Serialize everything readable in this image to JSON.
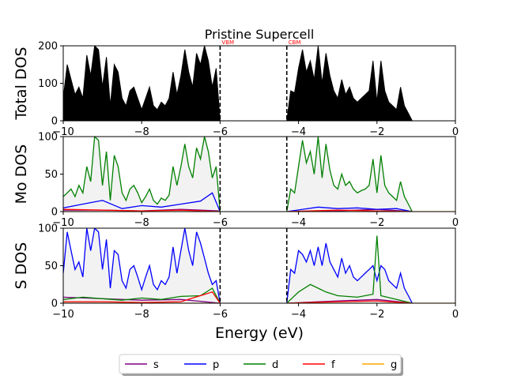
{
  "chart_data": {
    "type": "line",
    "title": "Pristine Supercell",
    "xlabel": "Energy (eV)",
    "xlim": [
      -10,
      0
    ],
    "x_ticks": [
      -10,
      -8,
      -6,
      -4,
      -2,
      0
    ],
    "x_tick_labels": [
      "−10",
      "−8",
      "−6",
      "−4",
      "−2",
      "0"
    ],
    "vlines": [
      {
        "x": -6.0,
        "label": "VBM",
        "color": "#ff0000"
      },
      {
        "x": -4.3,
        "label": "CBM",
        "color": "#ff0000"
      }
    ],
    "panels": [
      {
        "ylabel": "Total DOS",
        "ylim": [
          0,
          200
        ],
        "y_ticks": [
          0,
          100,
          200
        ],
        "y_tick_labels": [
          "0",
          "100",
          "200"
        ],
        "series": [
          {
            "name": "",
            "color": "#000000",
            "fill": true,
            "segments": [
              {
                "x": [
                  -10.0,
                  -9.9,
                  -9.8,
                  -9.7,
                  -9.6,
                  -9.5,
                  -9.4,
                  -9.3,
                  -9.2,
                  -9.1,
                  -9.0,
                  -8.9,
                  -8.8,
                  -8.7,
                  -8.6,
                  -8.5,
                  -8.4,
                  -8.3,
                  -8.2,
                  -8.1,
                  -8.0,
                  -7.9,
                  -7.8,
                  -7.7,
                  -7.6,
                  -7.5,
                  -7.4,
                  -7.3,
                  -7.2,
                  -7.1,
                  -7.0,
                  -6.9,
                  -6.8,
                  -6.7,
                  -6.6,
                  -6.5,
                  -6.4,
                  -6.3,
                  -6.2,
                  -6.1,
                  -6.0
                ],
                "y": [
                  60,
                  150,
                  110,
                  70,
                  90,
                  60,
                  175,
                  120,
                  200,
                  190,
                  90,
                  170,
                  40,
                  150,
                  130,
                  60,
                  40,
                  80,
                  90,
                  60,
                  30,
                  60,
                  90,
                  40,
                  30,
                  50,
                  40,
                  60,
                  130,
                  70,
                  120,
                  190,
                  130,
                  90,
                  180,
                  150,
                  200,
                  160,
                  90,
                  140,
                  0
                ]
              },
              {
                "x": [
                  -4.3,
                  -4.2,
                  -4.1,
                  -4.0,
                  -3.9,
                  -3.8,
                  -3.7,
                  -3.6,
                  -3.5,
                  -3.4,
                  -3.3,
                  -3.2,
                  -3.1,
                  -3.0,
                  -2.9,
                  -2.8,
                  -2.7,
                  -2.6,
                  -2.5,
                  -2.4,
                  -2.3,
                  -2.2,
                  -2.1,
                  -2.0,
                  -1.9,
                  -1.8,
                  -1.7,
                  -1.6,
                  -1.5,
                  -1.4,
                  -1.3,
                  -1.2,
                  -1.1
                ],
                "y": [
                  0,
                  80,
                  75,
                  140,
                  190,
                  130,
                  160,
                  110,
                  200,
                  100,
                  180,
                  120,
                  80,
                  60,
                  110,
                  70,
                  90,
                  60,
                  50,
                  60,
                  70,
                  80,
                  160,
                  50,
                  160,
                  80,
                  50,
                  40,
                  30,
                  90,
                  40,
                  20,
                  0
                ]
              }
            ]
          }
        ]
      },
      {
        "ylabel": "Mo DOS",
        "ylim": [
          0,
          100
        ],
        "y_ticks": [
          0,
          50,
          100
        ],
        "y_tick_labels": [
          "0",
          "50",
          "100"
        ],
        "series": [
          {
            "name": "s",
            "color": "#800080",
            "segments": [
              {
                "x": [
                  -10.0,
                  -9.0,
                  -8.0,
                  -7.0,
                  -6.0
                ],
                "y": [
                  2,
                  2,
                  1,
                  3,
                  1
                ]
              },
              {
                "x": [
                  -4.3,
                  -3.0,
                  -2.0,
                  -1.1
                ],
                "y": [
                  0,
                  1,
                  3,
                  0
                ]
              }
            ]
          },
          {
            "name": "p",
            "color": "#0000ff",
            "segments": [
              {
                "x": [
                  -10.0,
                  -9.5,
                  -9.0,
                  -8.5,
                  -8.0,
                  -7.5,
                  -7.0,
                  -6.5,
                  -6.2,
                  -6.0
                ],
                "y": [
                  5,
                  10,
                  15,
                  4,
                  8,
                  6,
                  10,
                  14,
                  25,
                  0
                ]
              },
              {
                "x": [
                  -4.3,
                  -3.5,
                  -3.0,
                  -2.5,
                  -2.0,
                  -1.5,
                  -1.1
                ],
                "y": [
                  0,
                  6,
                  4,
                  5,
                  3,
                  4,
                  0
                ]
              }
            ]
          },
          {
            "name": "d",
            "color": "#008000",
            "segments": [
              {
                "x": [
                  -10.0,
                  -9.9,
                  -9.8,
                  -9.7,
                  -9.6,
                  -9.5,
                  -9.4,
                  -9.3,
                  -9.2,
                  -9.1,
                  -9.0,
                  -8.9,
                  -8.8,
                  -8.7,
                  -8.6,
                  -8.5,
                  -8.4,
                  -8.3,
                  -8.2,
                  -8.1,
                  -8.0,
                  -7.9,
                  -7.8,
                  -7.7,
                  -7.6,
                  -7.5,
                  -7.4,
                  -7.3,
                  -7.2,
                  -7.1,
                  -7.0,
                  -6.9,
                  -6.8,
                  -6.7,
                  -6.6,
                  -6.5,
                  -6.4,
                  -6.3,
                  -6.2,
                  -6.1,
                  -6.0
                ],
                "y": [
                  20,
                  25,
                  30,
                  20,
                  35,
                  25,
                  60,
                  40,
                  100,
                  95,
                  35,
                  80,
                  15,
                  75,
                  60,
                  25,
                  15,
                  30,
                  35,
                  25,
                  12,
                  20,
                  30,
                  15,
                  10,
                  18,
                  15,
                  22,
                  60,
                  35,
                  60,
                  90,
                  60,
                  45,
                  85,
                  70,
                  100,
                  80,
                  45,
                  60,
                  0
                ]
              },
              {
                "x": [
                  -4.3,
                  -4.2,
                  -4.1,
                  -4.0,
                  -3.9,
                  -3.8,
                  -3.7,
                  -3.6,
                  -3.5,
                  -3.4,
                  -3.3,
                  -3.2,
                  -3.1,
                  -3.0,
                  -2.9,
                  -2.8,
                  -2.7,
                  -2.6,
                  -2.5,
                  -2.4,
                  -2.3,
                  -2.2,
                  -2.1,
                  -2.0,
                  -1.9,
                  -1.8,
                  -1.7,
                  -1.6,
                  -1.5,
                  -1.4,
                  -1.3,
                  -1.2,
                  -1.1
                ],
                "y": [
                  0,
                  30,
                  25,
                  60,
                  95,
                  65,
                  80,
                  50,
                  100,
                  45,
                  90,
                  55,
                  35,
                  30,
                  50,
                  35,
                  40,
                  30,
                  25,
                  28,
                  30,
                  35,
                  70,
                  25,
                  75,
                  35,
                  25,
                  20,
                  15,
                  40,
                  20,
                  10,
                  0
                ]
              }
            ]
          },
          {
            "name": "f",
            "color": "#ff0000",
            "segments": [
              {
                "x": [
                  -10.0,
                  -9.0,
                  -8.0,
                  -7.0,
                  -6.0
                ],
                "y": [
                  3,
                  2,
                  1,
                  2,
                  0
                ]
              },
              {
                "x": [
                  -4.3,
                  -3.0,
                  -2.0,
                  -1.1
                ],
                "y": [
                  0,
                  2,
                  1,
                  0
                ]
              }
            ]
          },
          {
            "name": "g",
            "color": "#ffa500",
            "segments": [
              {
                "x": [
                  -10.0,
                  -6.0
                ],
                "y": [
                  0,
                  0
                ]
              },
              {
                "x": [
                  -4.3,
                  0.0
                ],
                "y": [
                  0,
                  0
                ]
              }
            ]
          }
        ]
      },
      {
        "ylabel": "S DOS",
        "ylim": [
          0,
          100
        ],
        "y_ticks": [
          0,
          50,
          100
        ],
        "y_tick_labels": [
          "0",
          "50",
          "100"
        ],
        "series": [
          {
            "name": "s",
            "color": "#800080",
            "segments": [
              {
                "x": [
                  -10.0,
                  -9.0,
                  -8.0,
                  -7.0,
                  -6.0
                ],
                "y": [
                  8,
                  6,
                  4,
                  5,
                  0
                ]
              },
              {
                "x": [
                  -4.3,
                  -3.0,
                  -2.0,
                  -1.1
                ],
                "y": [
                  0,
                  3,
                  5,
                  0
                ]
              }
            ]
          },
          {
            "name": "p",
            "color": "#0000ff",
            "segments": [
              {
                "x": [
                  -10.0,
                  -9.9,
                  -9.8,
                  -9.7,
                  -9.6,
                  -9.5,
                  -9.4,
                  -9.3,
                  -9.2,
                  -9.1,
                  -9.0,
                  -8.9,
                  -8.8,
                  -8.7,
                  -8.6,
                  -8.5,
                  -8.4,
                  -8.3,
                  -8.2,
                  -8.1,
                  -8.0,
                  -7.9,
                  -7.8,
                  -7.7,
                  -7.6,
                  -7.5,
                  -7.4,
                  -7.3,
                  -7.2,
                  -7.1,
                  -7.0,
                  -6.9,
                  -6.8,
                  -6.7,
                  -6.6,
                  -6.5,
                  -6.4,
                  -6.3,
                  -6.2,
                  -6.1,
                  -6.0
                ],
                "y": [
                  40,
                  95,
                  70,
                  45,
                  55,
                  35,
                  100,
                  70,
                  100,
                  95,
                  45,
                  85,
                  20,
                  70,
                  65,
                  30,
                  20,
                  45,
                  50,
                  35,
                  18,
                  35,
                  50,
                  25,
                  18,
                  30,
                  25,
                  35,
                  75,
                  40,
                  70,
                  100,
                  70,
                  50,
                  95,
                  80,
                  60,
                  40,
                  25,
                  30,
                  0
                ]
              },
              {
                "x": [
                  -4.3,
                  -4.2,
                  -4.1,
                  -4.0,
                  -3.9,
                  -3.8,
                  -3.7,
                  -3.6,
                  -3.5,
                  -3.4,
                  -3.3,
                  -3.2,
                  -3.1,
                  -3.0,
                  -2.9,
                  -2.8,
                  -2.7,
                  -2.6,
                  -2.5,
                  -2.4,
                  -2.3,
                  -2.2,
                  -2.1,
                  -2.0,
                  -1.9,
                  -1.8,
                  -1.7,
                  -1.6,
                  -1.5,
                  -1.4,
                  -1.3,
                  -1.2,
                  -1.1
                ],
                "y": [
                  0,
                  45,
                  40,
                  70,
                  65,
                  55,
                  70,
                  50,
                  75,
                  50,
                  80,
                  55,
                  45,
                  35,
                  60,
                  40,
                  50,
                  35,
                  30,
                  35,
                  40,
                  45,
                  50,
                  30,
                  50,
                  45,
                  30,
                  25,
                  20,
                  40,
                  20,
                  10,
                  0
                ]
              }
            ]
          },
          {
            "name": "d",
            "color": "#008000",
            "segments": [
              {
                "x": [
                  -10.0,
                  -9.5,
                  -9.0,
                  -8.5,
                  -8.0,
                  -7.5,
                  -7.0,
                  -6.5,
                  -6.2,
                  -6.0
                ],
                "y": [
                  5,
                  8,
                  6,
                  4,
                  7,
                  5,
                  9,
                  10,
                  20,
                  0
                ]
              },
              {
                "x": [
                  -4.3,
                  -4.0,
                  -3.7,
                  -3.5,
                  -3.3,
                  -3.0,
                  -2.5,
                  -2.1,
                  -2.0,
                  -1.9,
                  -1.5,
                  -1.1
                ],
                "y": [
                  0,
                  15,
                  25,
                  20,
                  15,
                  10,
                  8,
                  12,
                  90,
                  10,
                  5,
                  0
                ]
              }
            ]
          },
          {
            "name": "f",
            "color": "#ff0000",
            "segments": [
              {
                "x": [
                  -10.0,
                  -9.0,
                  -8.0,
                  -7.0,
                  -6.2,
                  -6.0
                ],
                "y": [
                  2,
                  2,
                  1,
                  2,
                  15,
                  0
                ]
              },
              {
                "x": [
                  -4.3,
                  -3.0,
                  -2.0,
                  -1.1
                ],
                "y": [
                  0,
                  2,
                  3,
                  0
                ]
              }
            ]
          },
          {
            "name": "g",
            "color": "#ffa500",
            "segments": [
              {
                "x": [
                  -10.0,
                  -6.0
                ],
                "y": [
                  0,
                  0
                ]
              },
              {
                "x": [
                  -4.3,
                  0.0
                ],
                "y": [
                  0,
                  0
                ]
              }
            ]
          }
        ]
      }
    ],
    "legend": {
      "placement": "bottom-center",
      "entries": [
        {
          "label": "s",
          "color": "#800080"
        },
        {
          "label": "p",
          "color": "#0000ff"
        },
        {
          "label": "d",
          "color": "#008000"
        },
        {
          "label": "f",
          "color": "#ff0000"
        },
        {
          "label": "g",
          "color": "#ffa500"
        }
      ]
    }
  }
}
